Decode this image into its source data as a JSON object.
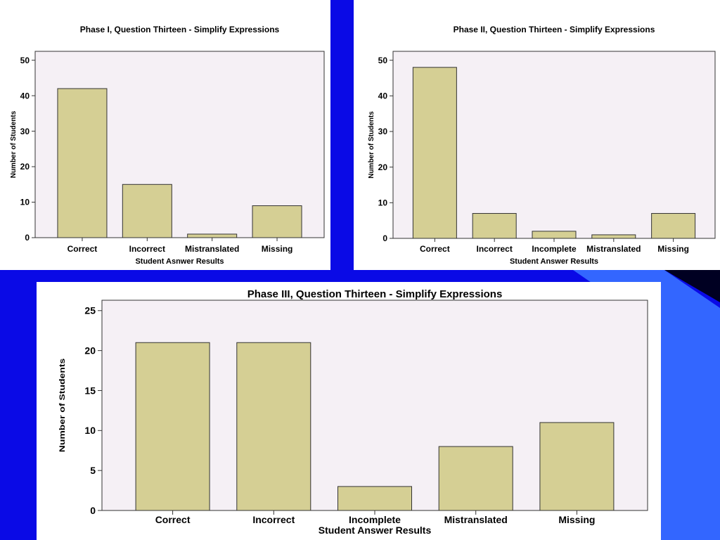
{
  "colors": {
    "slide_background": "#0a0ae6",
    "accent_shape": "#3366ff",
    "plot_background": "#f5f0f5",
    "bar_fill": "#d5cf94",
    "bar_stroke": "#333333"
  },
  "chart_data": [
    {
      "type": "bar",
      "title": "Phase I, Question Thirteen - Simplify Expressions",
      "xlabel": "Student Asnwer Results",
      "ylabel": "Number of Students",
      "categories": [
        "Correct",
        "Incorrect",
        "Mistranslated",
        "Missing"
      ],
      "values": [
        42,
        15,
        1,
        9
      ],
      "ylim": [
        0,
        52.5
      ],
      "yticks": [
        0,
        10,
        20,
        30,
        40,
        50
      ],
      "grid": false
    },
    {
      "type": "bar",
      "title": "Phase II, Question Thirteen - Simplify Expressions",
      "xlabel": "Student Answer Results",
      "ylabel": "Number of Students",
      "categories": [
        "Correct",
        "Incorrect",
        "Incomplete",
        "Mistranslated",
        "Missing"
      ],
      "values": [
        48,
        7,
        2,
        1,
        7
      ],
      "ylim": [
        0,
        52.5
      ],
      "yticks": [
        0,
        10,
        20,
        30,
        40,
        50
      ],
      "grid": false
    },
    {
      "type": "bar",
      "title": "Phase III, Question Thirteen - Simplify Expressions",
      "xlabel": "Student Answer Results",
      "ylabel": "Number of Students",
      "categories": [
        "Correct",
        "Incorrect",
        "Incomplete",
        "Mistranslated",
        "Missing"
      ],
      "values": [
        21,
        21,
        3,
        8,
        11
      ],
      "ylim": [
        0,
        26.3
      ],
      "yticks": [
        0,
        5,
        10,
        15,
        20,
        25
      ],
      "grid": false
    }
  ]
}
